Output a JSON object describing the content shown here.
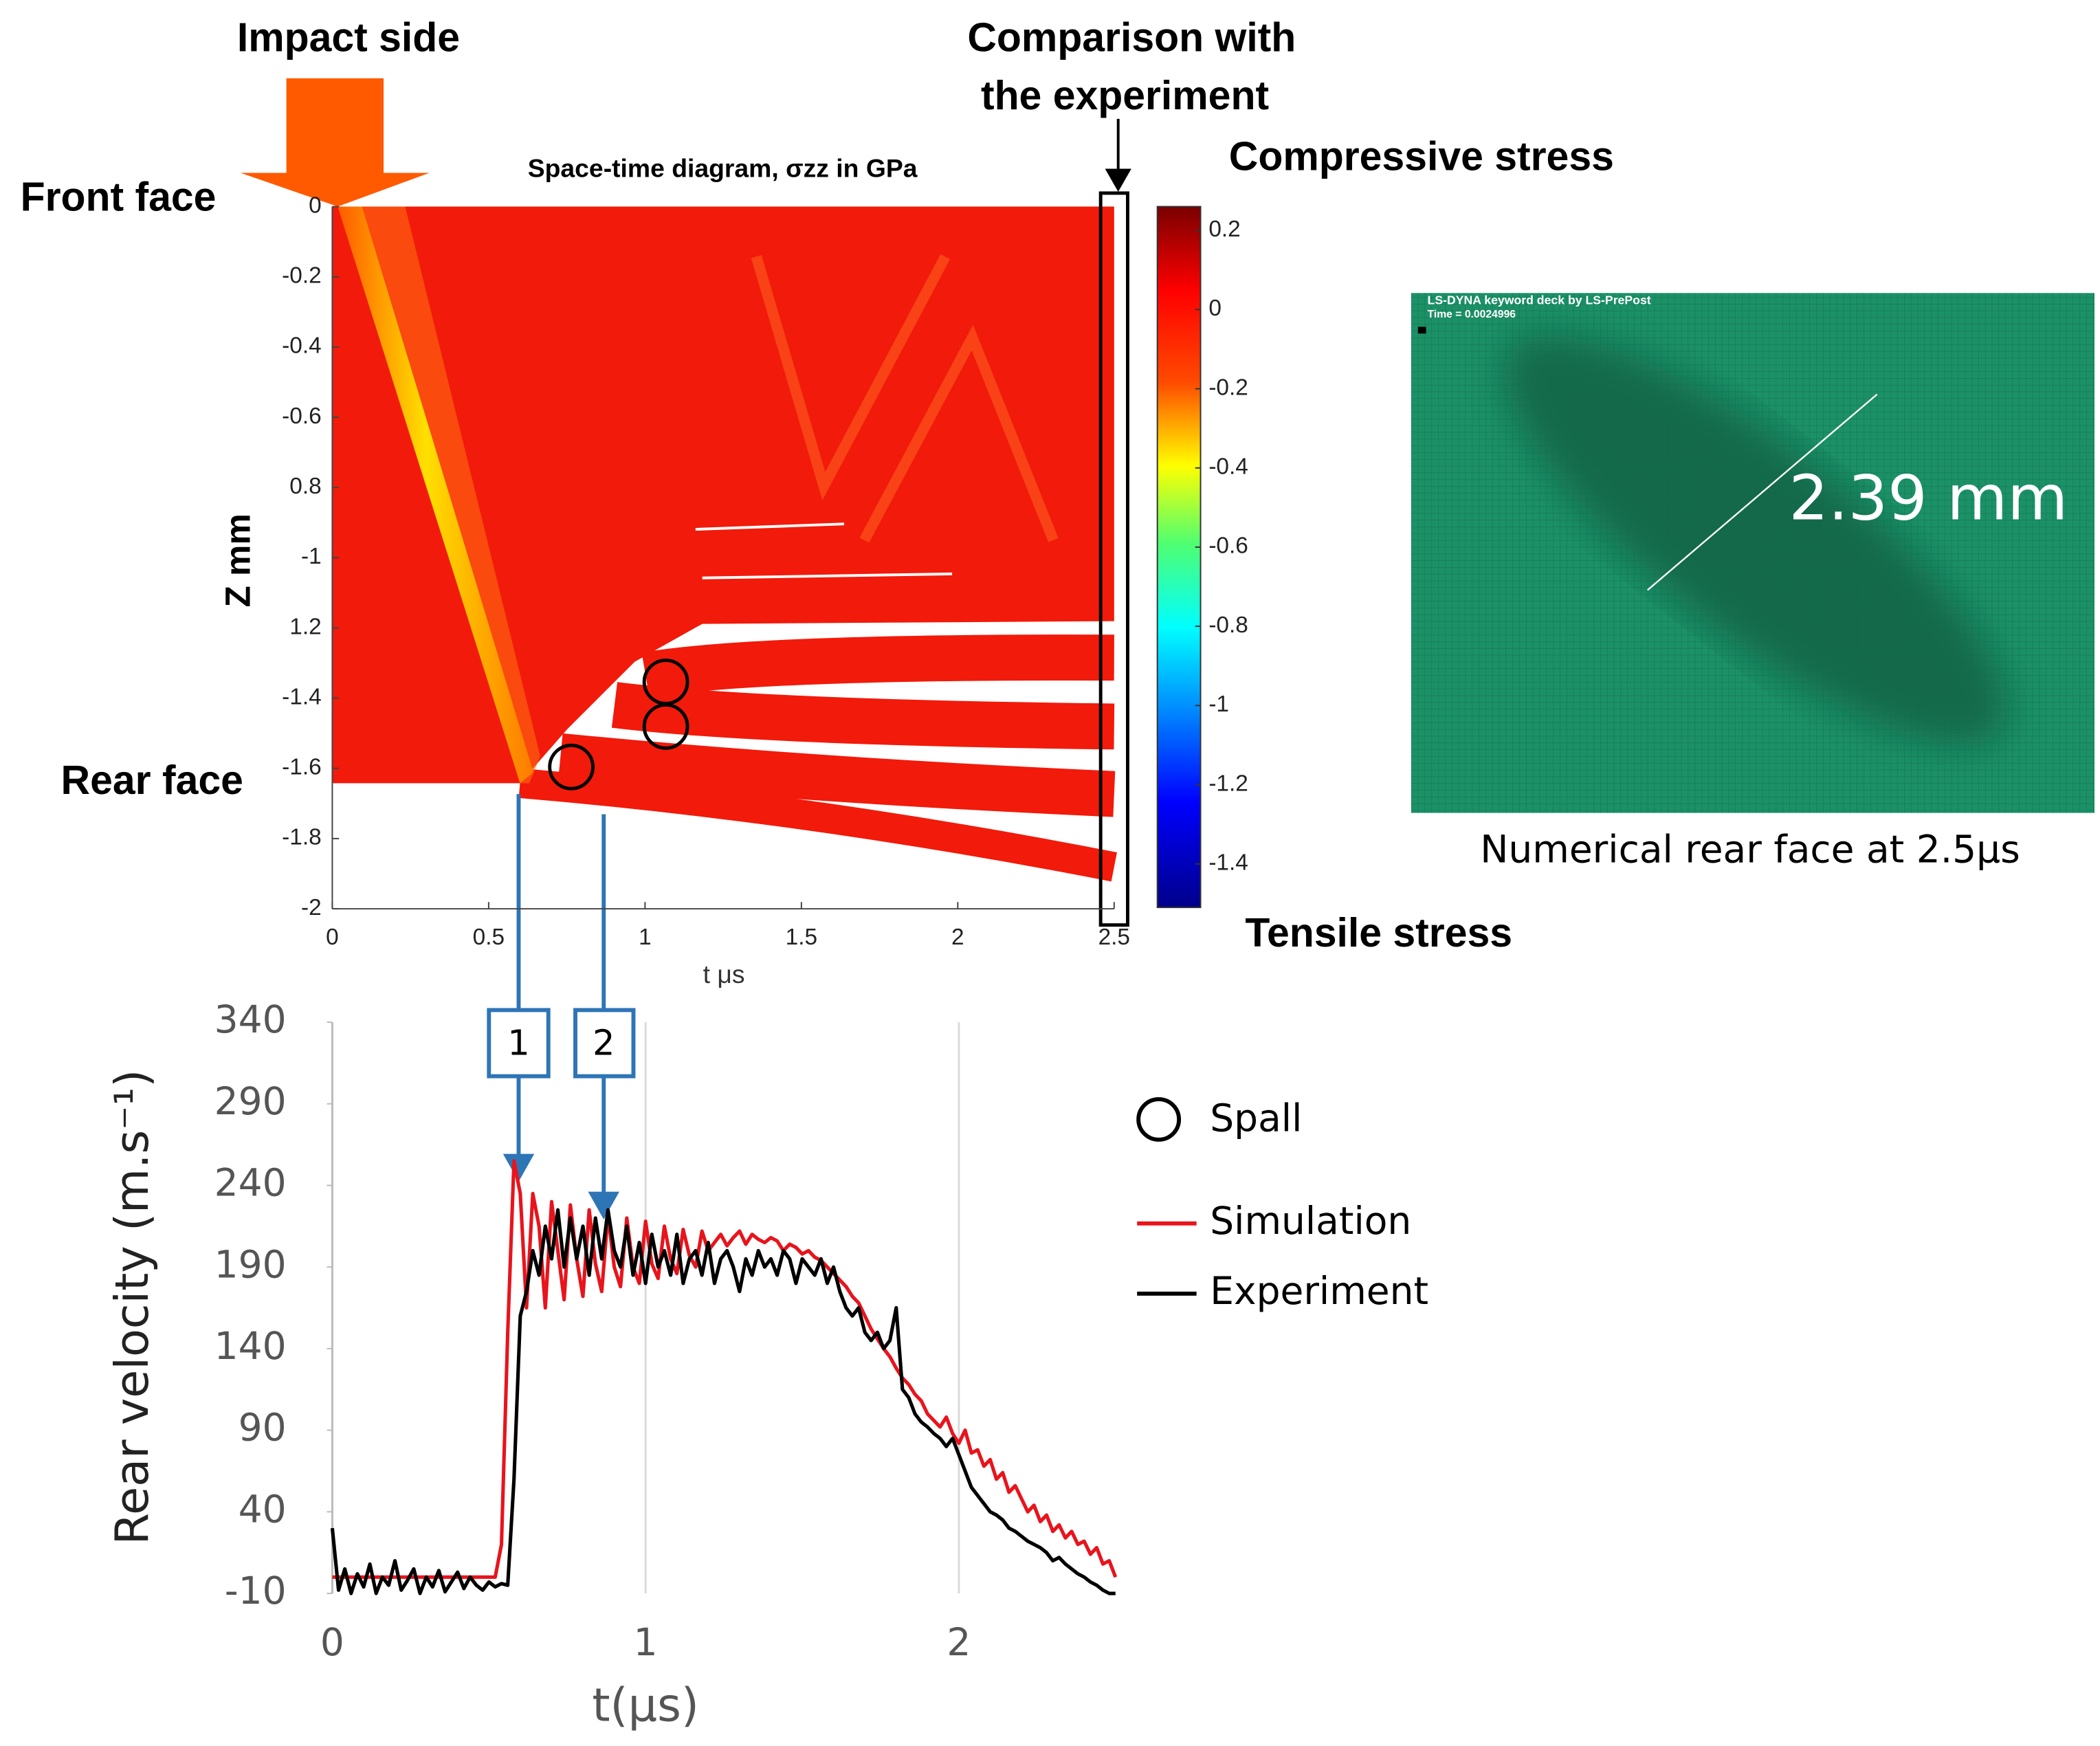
{
  "annotations": {
    "impact": "Impact side",
    "front": "Front face",
    "rear": "Rear face",
    "comparison_1": "Comparison with",
    "comparison_2": "the experiment",
    "compressive": "Compressive stress",
    "tensile": "Tensile stress",
    "spall": "Spall",
    "markers": [
      "1",
      "2"
    ]
  },
  "image_panel": {
    "header": "LS-DYNA keyword deck by LS-PrePost",
    "time": "Time =    0.0024996",
    "measurement": "2.39 mm",
    "caption": "Numerical rear face at 2.5μs"
  },
  "chart_data": [
    {
      "type": "heatmap",
      "title": "Space-time diagram, σzz in GPa",
      "xlabel": "t μs",
      "ylabel": "Z mm",
      "xlim": [
        0,
        2.5
      ],
      "xticks": [
        0,
        0.5,
        1,
        1.5,
        2,
        2.5
      ],
      "ylim": [
        -2,
        0
      ],
      "yticks": [
        0,
        -0.2,
        -0.4,
        -0.6,
        {
          "value": -0.8,
          "label": "0.8"
        },
        -1,
        {
          "value": -1.2,
          "label": "1.2"
        },
        -1.4,
        -1.6,
        -1.8,
        -2
      ],
      "colorbar": {
        "clim": [
          -1.51,
          0.26
        ],
        "ticks": [
          0.2,
          0,
          -0.2,
          -0.4,
          -0.6,
          -0.8,
          -1,
          -1.2,
          -1.4
        ]
      }
    },
    {
      "type": "line",
      "xlabel": "t(μs)",
      "ylabel": "Rear velocity (m.s⁻¹)",
      "xlim": [
        0,
        2.5
      ],
      "xticks": [
        0,
        1,
        2
      ],
      "ylim": [
        -10,
        340
      ],
      "yticks": [
        -10,
        40,
        90,
        140,
        190,
        240,
        290,
        340
      ],
      "grid": true,
      "x": [
        0,
        0.02,
        0.04,
        0.06,
        0.08,
        0.1,
        0.12,
        0.14,
        0.16,
        0.18,
        0.2,
        0.22,
        0.24,
        0.26,
        0.28,
        0.3,
        0.32,
        0.34,
        0.36,
        0.38,
        0.4,
        0.42,
        0.44,
        0.46,
        0.48,
        0.5,
        0.52,
        0.54,
        0.56,
        0.58,
        0.6,
        0.62,
        0.64,
        0.66,
        0.68,
        0.7,
        0.72,
        0.74,
        0.76,
        0.78,
        0.8,
        0.82,
        0.84,
        0.86,
        0.88,
        0.9,
        0.92,
        0.94,
        0.96,
        0.98,
        1,
        1.02,
        1.04,
        1.06,
        1.08,
        1.1,
        1.12,
        1.14,
        1.16,
        1.18,
        1.2,
        1.22,
        1.24,
        1.26,
        1.28,
        1.3,
        1.32,
        1.34,
        1.36,
        1.38,
        1.4,
        1.42,
        1.44,
        1.46,
        1.48,
        1.5,
        1.52,
        1.54,
        1.56,
        1.58,
        1.6,
        1.62,
        1.64,
        1.66,
        1.68,
        1.7,
        1.72,
        1.74,
        1.76,
        1.78,
        1.8,
        1.82,
        1.84,
        1.86,
        1.88,
        1.9,
        1.92,
        1.94,
        1.96,
        1.98,
        2,
        2.02,
        2.04,
        2.06,
        2.08,
        2.1,
        2.12,
        2.14,
        2.16,
        2.18,
        2.2,
        2.22,
        2.24,
        2.26,
        2.28,
        2.3,
        2.32,
        2.34,
        2.36,
        2.38,
        2.4,
        2.42,
        2.44,
        2.46,
        2.48,
        2.5
      ],
      "series": [
        {
          "name": "Simulation",
          "color": "#e8141c",
          "values": [
            0,
            0,
            0,
            0,
            0,
            0,
            0,
            0,
            0,
            0,
            0,
            0,
            0,
            0,
            0,
            0,
            0,
            0,
            0,
            0,
            0,
            0,
            0,
            0,
            0,
            0,
            0,
            20,
            150,
            255,
            235,
            165,
            235,
            215,
            165,
            230,
            200,
            170,
            228,
            195,
            172,
            225,
            192,
            175,
            222,
            190,
            178,
            220,
            190,
            180,
            218,
            192,
            183,
            215,
            195,
            186,
            213,
            197,
            190,
            212,
            200,
            205,
            210,
            203,
            208,
            212,
            204,
            210,
            207,
            205,
            208,
            206,
            200,
            204,
            202,
            198,
            200,
            196,
            194,
            190,
            186,
            182,
            178,
            172,
            168,
            160,
            152,
            146,
            140,
            135,
            128,
            122,
            118,
            112,
            108,
            100,
            96,
            92,
            98,
            88,
            82,
            90,
            76,
            78,
            68,
            72,
            60,
            64,
            52,
            56,
            48,
            40,
            44,
            34,
            38,
            28,
            32,
            24,
            28,
            20,
            22,
            14,
            18,
            8,
            10,
            0
          ]
        },
        {
          "name": "Experiment",
          "color": "#000000",
          "values": [
            30,
            -8,
            5,
            -10,
            2,
            -6,
            8,
            -10,
            0,
            -5,
            10,
            -8,
            -2,
            5,
            -10,
            0,
            -6,
            4,
            -9,
            -3,
            3,
            -7,
            0,
            -5,
            -8,
            -3,
            -6,
            -4,
            -5,
            60,
            160,
            175,
            200,
            185,
            215,
            195,
            225,
            190,
            220,
            195,
            215,
            185,
            220,
            195,
            225,
            200,
            190,
            215,
            185,
            205,
            180,
            210,
            190,
            200,
            185,
            210,
            180,
            195,
            200,
            185,
            205,
            180,
            195,
            200,
            190,
            175,
            195,
            185,
            200,
            190,
            195,
            185,
            200,
            195,
            180,
            195,
            190,
            185,
            195,
            180,
            190,
            175,
            165,
            160,
            165,
            150,
            145,
            150,
            140,
            145,
            165,
            115,
            110,
            100,
            95,
            92,
            88,
            85,
            80,
            85,
            75,
            65,
            55,
            50,
            45,
            40,
            38,
            35,
            30,
            28,
            25,
            22,
            20,
            18,
            15,
            10,
            12,
            8,
            5,
            2,
            0,
            -3,
            -5,
            -8,
            -10,
            -10
          ]
        }
      ]
    }
  ]
}
